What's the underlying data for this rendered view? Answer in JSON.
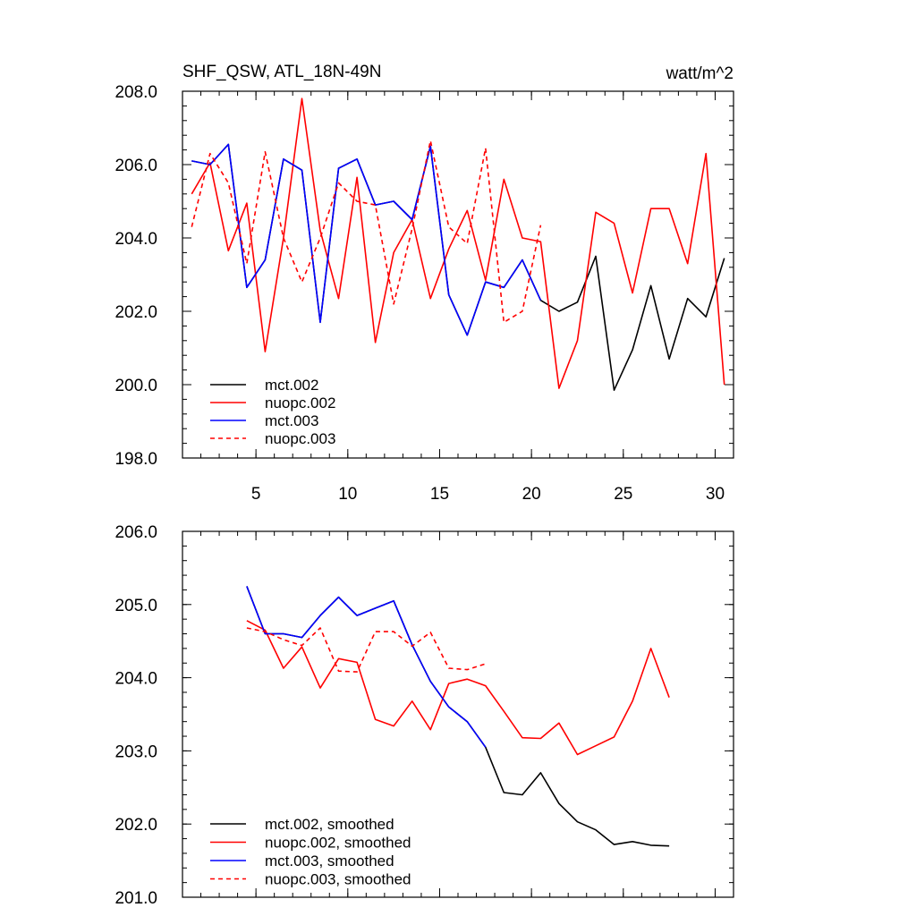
{
  "chart_data": [
    {
      "type": "line",
      "title": "SHF_QSW, ATL_18N-49N",
      "units": "watt/m^2",
      "xlim": [
        1,
        31
      ],
      "ylim": [
        198,
        208
      ],
      "yticks": [
        198,
        200,
        202,
        204,
        206,
        208
      ],
      "ytick_labels": [
        "198.0",
        "200.0",
        "202.0",
        "204.0",
        "206.0",
        "208.0"
      ],
      "xticks": [
        5,
        10,
        15,
        20,
        25,
        30
      ],
      "xtick_labels": [
        "5",
        "10",
        "15",
        "20",
        "25",
        "30"
      ],
      "legend_position": "bottom-left",
      "series": [
        {
          "name": "mct.002",
          "color": "#000000",
          "dash": "solid",
          "x": [
            1.5,
            2.5,
            3.5,
            4.5,
            5.5,
            6.5,
            7.5,
            8.5,
            9.5,
            10.5,
            11.5,
            12.5,
            13.5,
            14.5,
            15.5,
            16.5,
            17.5,
            18.5,
            19.5,
            20.5,
            21.5,
            22.5,
            23.5,
            24.5,
            25.5,
            26.5,
            27.5,
            28.5,
            29.5,
            30.5
          ],
          "values": [
            206.1,
            206.0,
            206.55,
            202.65,
            203.4,
            206.15,
            205.85,
            201.7,
            205.9,
            206.15,
            204.9,
            205.0,
            204.5,
            206.5,
            202.45,
            201.35,
            202.8,
            202.65,
            203.4,
            202.3,
            202.0,
            202.25,
            203.5,
            199.85,
            200.95,
            202.7,
            200.7,
            202.35,
            201.85,
            203.45
          ]
        },
        {
          "name": "nuopc.002",
          "color": "#ff0000",
          "dash": "solid",
          "x": [
            1.5,
            2.5,
            3.5,
            4.5,
            5.5,
            6.5,
            7.5,
            8.5,
            9.5,
            10.5,
            11.5,
            12.5,
            13.5,
            14.5,
            15.5,
            16.5,
            17.5,
            18.5,
            19.5,
            20.5,
            21.5,
            22.5,
            23.5,
            24.5,
            25.5,
            26.5,
            27.5,
            28.5,
            29.5,
            30.5
          ],
          "values": [
            205.2,
            206.05,
            203.65,
            204.95,
            200.9,
            204.0,
            207.8,
            204.2,
            202.35,
            205.65,
            201.15,
            203.6,
            204.5,
            202.35,
            203.7,
            204.75,
            202.85,
            205.6,
            204.0,
            203.9,
            199.9,
            201.2,
            204.7,
            204.4,
            202.5,
            204.8,
            204.8,
            203.3,
            206.3,
            200.0
          ]
        },
        {
          "name": "mct.003",
          "color": "#0000ff",
          "dash": "solid",
          "x": [
            1.5,
            2.5,
            3.5,
            4.5,
            5.5,
            6.5,
            7.5,
            8.5,
            9.5,
            10.5,
            11.5,
            12.5,
            13.5,
            14.5,
            15.5,
            16.5,
            17.5,
            18.5,
            19.5,
            20.5
          ],
          "values": [
            206.1,
            206.0,
            206.55,
            202.65,
            203.4,
            206.15,
            205.85,
            201.7,
            205.9,
            206.15,
            204.9,
            205.0,
            204.5,
            206.5,
            202.45,
            201.35,
            202.8,
            202.65,
            203.4,
            202.3
          ]
        },
        {
          "name": "nuopc.003",
          "color": "#ff0000",
          "dash": "dashed",
          "x": [
            1.5,
            2.5,
            3.5,
            4.5,
            5.5,
            6.5,
            7.5,
            8.5,
            9.5,
            10.5,
            11.5,
            12.5,
            13.5,
            14.5,
            15.5,
            16.5,
            17.5,
            18.5,
            19.5,
            20.5
          ],
          "values": [
            204.3,
            206.3,
            205.5,
            203.3,
            206.35,
            204.0,
            202.8,
            204.0,
            205.5,
            205.0,
            204.9,
            202.2,
            204.25,
            206.65,
            204.3,
            203.85,
            206.45,
            201.7,
            202.0,
            204.35
          ]
        }
      ]
    },
    {
      "type": "line",
      "title": "",
      "xlim": [
        1,
        31
      ],
      "ylim": [
        201,
        206
      ],
      "yticks": [
        201,
        202,
        203,
        204,
        205,
        206
      ],
      "ytick_labels": [
        "201.0",
        "202.0",
        "203.0",
        "204.0",
        "205.0",
        "206.0"
      ],
      "xticks": [
        5,
        10,
        15,
        20,
        25,
        30
      ],
      "xtick_labels": [],
      "legend_position": "bottom-left",
      "series": [
        {
          "name": "mct.002, smoothed",
          "color": "#000000",
          "dash": "solid",
          "x": [
            4.5,
            5.5,
            6.5,
            7.5,
            8.5,
            9.5,
            10.5,
            11.5,
            12.5,
            13.5,
            14.5,
            15.5,
            16.5,
            17.5,
            18.5,
            19.5,
            20.5,
            21.5,
            22.5,
            23.5,
            24.5,
            25.5,
            26.5,
            27.5
          ],
          "values": [
            205.25,
            204.6,
            204.6,
            204.55,
            204.85,
            205.1,
            204.85,
            204.95,
            205.05,
            204.45,
            203.95,
            203.6,
            203.4,
            203.05,
            202.43,
            202.4,
            202.7,
            202.28,
            202.03,
            201.92,
            201.72,
            201.76,
            201.71,
            201.7
          ]
        },
        {
          "name": "nuopc.002, smoothed",
          "color": "#ff0000",
          "dash": "solid",
          "x": [
            4.5,
            5.5,
            6.5,
            7.5,
            8.5,
            9.5,
            10.5,
            11.5,
            12.5,
            13.5,
            14.5,
            15.5,
            16.5,
            17.5,
            18.5,
            19.5,
            20.5,
            21.5,
            22.5,
            23.5,
            24.5,
            25.5,
            26.5,
            27.5
          ],
          "values": [
            204.78,
            204.65,
            204.13,
            204.42,
            203.86,
            204.26,
            204.21,
            203.43,
            203.34,
            203.68,
            203.29,
            203.92,
            203.98,
            203.89,
            203.54,
            203.18,
            203.17,
            203.38,
            202.95,
            203.07,
            203.19,
            203.68,
            204.4,
            203.73
          ]
        },
        {
          "name": "mct.003, smoothed",
          "color": "#0000ff",
          "dash": "solid",
          "x": [
            4.5,
            5.5,
            6.5,
            7.5,
            8.5,
            9.5,
            10.5,
            11.5,
            12.5,
            13.5,
            14.5,
            15.5,
            16.5,
            17.5
          ],
          "values": [
            205.25,
            204.6,
            204.6,
            204.55,
            204.85,
            205.1,
            204.85,
            204.95,
            205.05,
            204.45,
            203.95,
            203.6,
            203.4,
            203.05
          ]
        },
        {
          "name": "nuopc.003, smoothed",
          "color": "#ff0000",
          "dash": "dashed",
          "x": [
            4.5,
            5.5,
            6.5,
            7.5,
            8.5,
            9.5,
            10.5,
            11.5,
            12.5,
            13.5,
            14.5,
            15.5,
            16.5,
            17.5
          ],
          "values": [
            204.68,
            204.63,
            204.52,
            204.44,
            204.68,
            204.09,
            204.08,
            204.63,
            204.63,
            204.43,
            204.62,
            204.13,
            204.11,
            204.19
          ]
        }
      ]
    }
  ]
}
